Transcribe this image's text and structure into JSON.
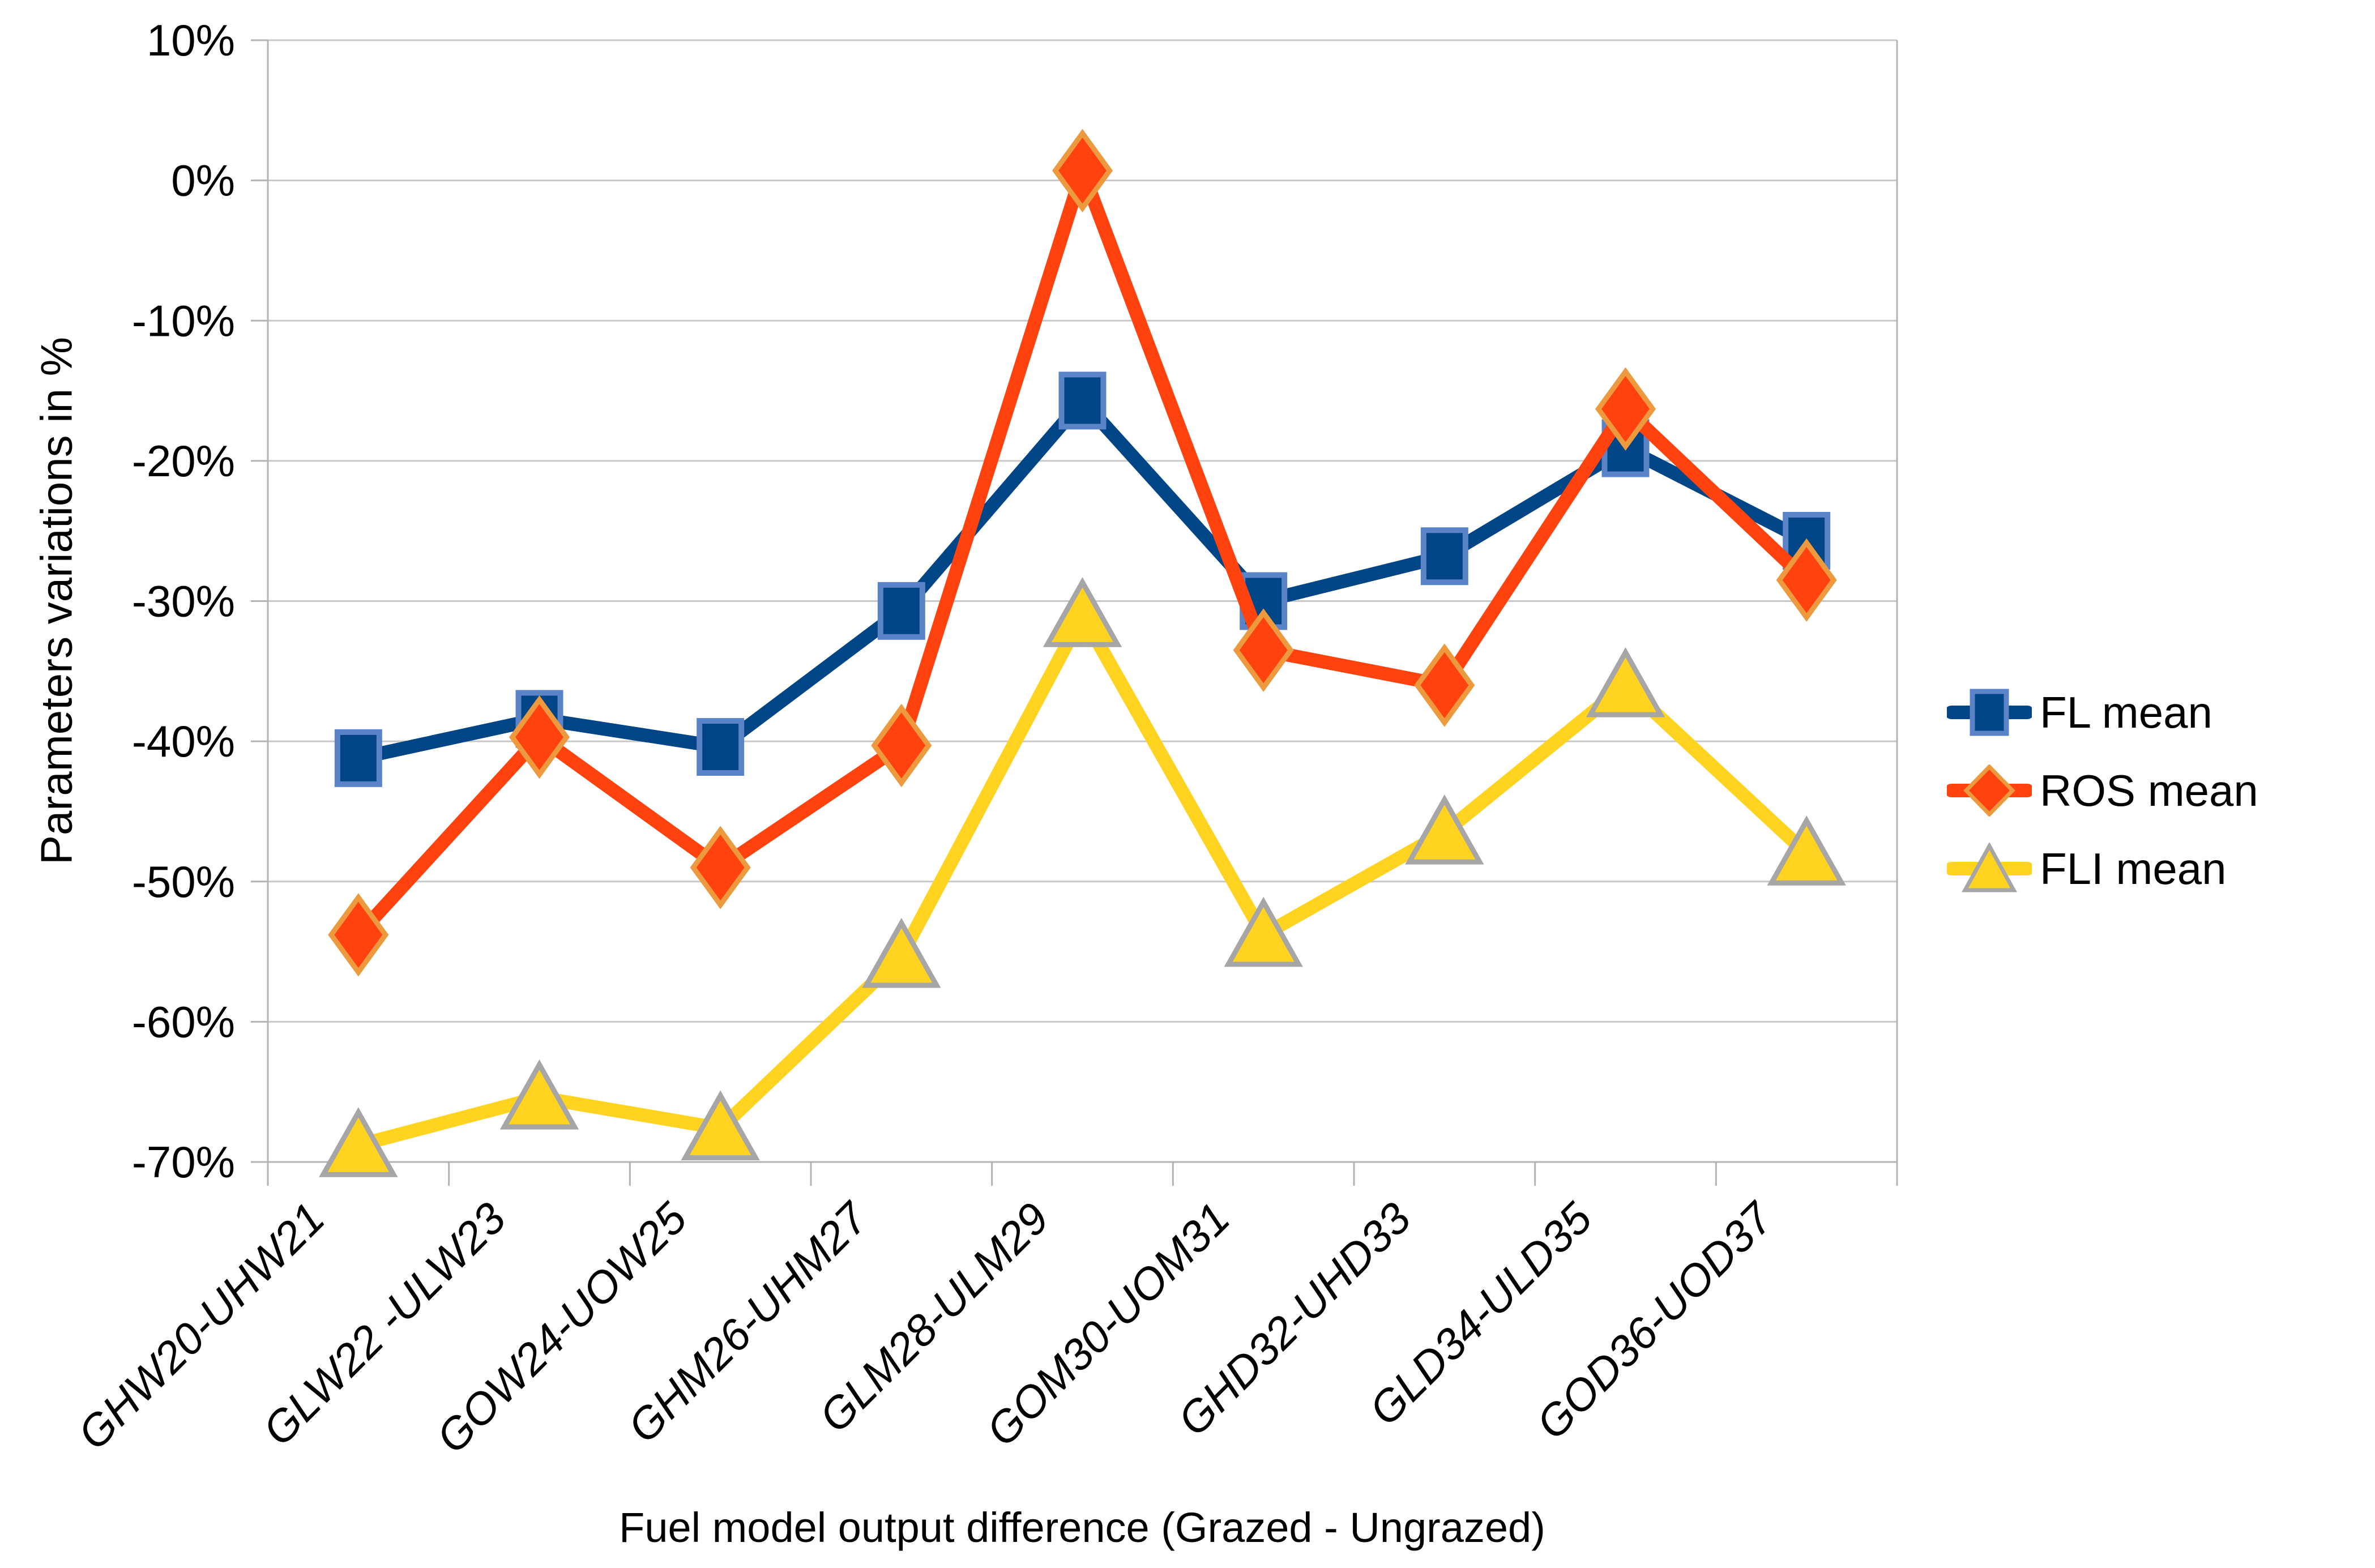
{
  "chart_data": {
    "type": "line",
    "title": "",
    "xlabel": "Fuel model output difference (Grazed - Ungrazed)",
    "ylabel": "Parameters variations in %",
    "ylim": [
      -70,
      10
    ],
    "ytick_step": 10,
    "ytick_labels": [
      "10%",
      "0%",
      "-10%",
      "-20%",
      "-30%",
      "-40%",
      "-50%",
      "-60%",
      "-70%"
    ],
    "grid": true,
    "legend_position": "right",
    "categories": [
      "GHW20-UHW21",
      "GLW22 -ULW23",
      "GOW24-UOW25",
      "GHM26-UHM27",
      "GLM28-ULM29",
      "GOM30-UOM31",
      "GHD32-UHD33",
      "GLD34-ULD35",
      "GOD36-UOD37"
    ],
    "series": [
      {
        "name": "FL mean",
        "marker": "square",
        "color": "#004586",
        "marker_border": "#5B84C8",
        "values": [
          -41.2,
          -38.4,
          -40.4,
          -30.7,
          -15.7,
          -30.0,
          -26.8,
          -19.1,
          -25.7
        ]
      },
      {
        "name": "ROS mean",
        "marker": "diamond",
        "color": "#FF420E",
        "marker_border": "#ED9A3E",
        "values": [
          -53.8,
          -39.7,
          -49.0,
          -40.3,
          0.7,
          -33.5,
          -36.0,
          -16.3,
          -28.5
        ]
      },
      {
        "name": "FLI mean",
        "marker": "triangle",
        "color": "#FFD320",
        "marker_border": "#A6A6A6",
        "values": [
          -68.8,
          -65.4,
          -67.6,
          -55.3,
          -31.0,
          -53.8,
          -46.5,
          -36.0,
          -48.0
        ]
      }
    ]
  },
  "colors": {
    "grid": "#C8C8C8",
    "axis": "#B3B3B3",
    "text": "#000000",
    "background": "#FFFFFF"
  }
}
